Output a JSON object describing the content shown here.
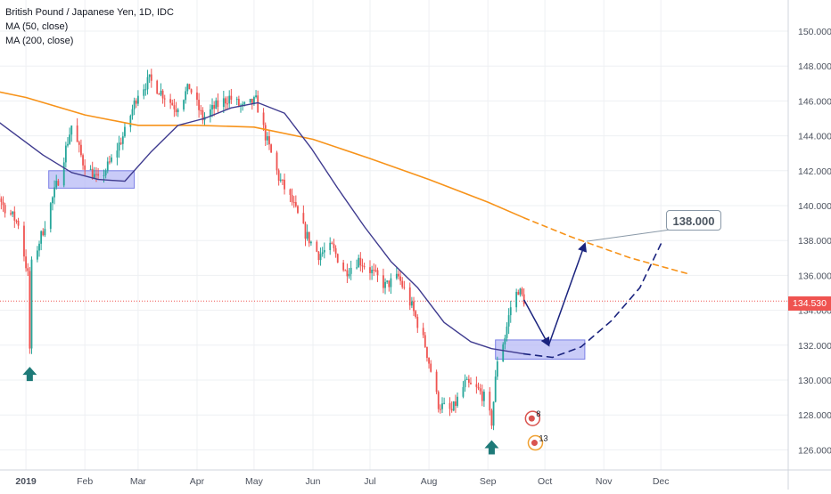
{
  "legend": {
    "title": "British Pound / Japanese Yen, 1D, IDC",
    "ma50": "MA (50, close)",
    "ma200": "MA (200, close)"
  },
  "price_tag": "134.530",
  "target_label": "138.000",
  "badges": {
    "b1": "8",
    "b2": "13"
  },
  "colors": {
    "up": "#26a69a",
    "down": "#ef5350",
    "ma50": "#3f3b8f",
    "ma200": "#f7931a",
    "zone": "#b2b5f5",
    "arrow_marker": "#1e7a78",
    "projection": "#1a237e",
    "grid": "#eef0f3"
  },
  "chart_data": {
    "type": "candlestick",
    "title": "British Pound / Japanese Yen, 1D, IDC",
    "x_tick_labels": [
      "2019",
      "Feb",
      "Mar",
      "Apr",
      "May",
      "Jun",
      "Jul",
      "Aug",
      "Sep",
      "Oct",
      "Nov",
      "Dec"
    ],
    "y_tick_labels": [
      "126.000",
      "128.000",
      "130.000",
      "132.000",
      "134.000",
      "136.000",
      "138.000",
      "140.000",
      "142.000",
      "144.000",
      "146.000",
      "148.000",
      "150.000"
    ],
    "ylim": [
      125.5,
      151
    ],
    "grid": true,
    "last_price": 134.53,
    "price_path": [
      [
        "2018-12-01",
        144.5
      ],
      [
        "2018-12-10",
        142.6
      ],
      [
        "2018-12-20",
        140.0
      ],
      [
        "2018-12-28",
        139.0
      ],
      [
        "2019-01-02",
        136.0
      ],
      [
        "2019-01-03",
        131.8
      ],
      [
        "2019-01-04",
        136.6
      ],
      [
        "2019-01-10",
        138.6
      ],
      [
        "2019-01-18",
        141.5
      ],
      [
        "2019-01-25",
        144.6
      ],
      [
        "2019-01-31",
        142.5
      ],
      [
        "2019-02-08",
        141.4
      ],
      [
        "2019-02-15",
        142.6
      ],
      [
        "2019-02-22",
        144.2
      ],
      [
        "2019-03-01",
        146.5
      ],
      [
        "2019-03-07",
        147.2
      ],
      [
        "2019-03-14",
        146.4
      ],
      [
        "2019-03-21",
        145.6
      ],
      [
        "2019-03-28",
        146.8
      ],
      [
        "2019-04-04",
        145.0
      ],
      [
        "2019-04-11",
        145.7
      ],
      [
        "2019-04-18",
        146.2
      ],
      [
        "2019-04-25",
        145.6
      ],
      [
        "2019-05-02",
        146.0
      ],
      [
        "2019-05-07",
        144.0
      ],
      [
        "2019-05-14",
        141.6
      ],
      [
        "2019-05-21",
        140.2
      ],
      [
        "2019-05-28",
        138.4
      ],
      [
        "2019-06-04",
        137.2
      ],
      [
        "2019-06-11",
        137.6
      ],
      [
        "2019-06-18",
        136.2
      ],
      [
        "2019-06-25",
        136.9
      ],
      [
        "2019-07-02",
        136.2
      ],
      [
        "2019-07-09",
        135.4
      ],
      [
        "2019-07-16",
        135.9
      ],
      [
        "2019-07-23",
        134.2
      ],
      [
        "2019-07-30",
        132.0
      ],
      [
        "2019-08-06",
        128.6
      ],
      [
        "2019-08-13",
        128.2
      ],
      [
        "2019-08-20",
        129.8
      ],
      [
        "2019-08-27",
        129.4
      ],
      [
        "2019-08-30",
        129.0
      ],
      [
        "2019-09-03",
        127.6
      ],
      [
        "2019-09-06",
        131.2
      ],
      [
        "2019-09-10",
        132.5
      ],
      [
        "2019-09-13",
        134.2
      ],
      [
        "2019-09-17",
        135.2
      ],
      [
        "2019-09-20",
        134.6
      ]
    ],
    "ma50": [
      [
        "2018-12-01",
        146.2
      ],
      [
        "2018-12-20",
        144.6
      ],
      [
        "2019-01-10",
        142.9
      ],
      [
        "2019-01-25",
        141.9
      ],
      [
        "2019-02-08",
        141.5
      ],
      [
        "2019-02-22",
        141.4
      ],
      [
        "2019-03-08",
        143.1
      ],
      [
        "2019-03-22",
        144.6
      ],
      [
        "2019-04-05",
        145.0
      ],
      [
        "2019-04-19",
        145.6
      ],
      [
        "2019-05-03",
        145.9
      ],
      [
        "2019-05-17",
        145.3
      ],
      [
        "2019-05-31",
        143.3
      ],
      [
        "2019-06-14",
        141.0
      ],
      [
        "2019-06-28",
        138.8
      ],
      [
        "2019-07-12",
        136.8
      ],
      [
        "2019-07-26",
        135.3
      ],
      [
        "2019-08-09",
        133.3
      ],
      [
        "2019-08-23",
        132.2
      ],
      [
        "2019-09-03",
        131.8
      ],
      [
        "2019-09-20",
        131.5
      ]
    ],
    "ma200": [
      [
        "2018-12-01",
        146.9
      ],
      [
        "2019-01-01",
        146.2
      ],
      [
        "2019-02-01",
        145.2
      ],
      [
        "2019-03-01",
        144.6
      ],
      [
        "2019-04-01",
        144.6
      ],
      [
        "2019-05-01",
        144.5
      ],
      [
        "2019-06-01",
        143.8
      ],
      [
        "2019-07-01",
        142.7
      ],
      [
        "2019-08-01",
        141.5
      ],
      [
        "2019-09-01",
        140.2
      ],
      [
        "2019-09-20",
        139.3
      ]
    ],
    "ma200_projection": [
      [
        "2019-09-20",
        139.3
      ],
      [
        "2019-10-15",
        138.2
      ],
      [
        "2019-11-15",
        137.0
      ],
      [
        "2019-12-15",
        136.1
      ]
    ],
    "projected_curve": [
      [
        "2019-09-20",
        131.5
      ],
      [
        "2019-10-05",
        131.3
      ],
      [
        "2019-10-20",
        131.9
      ],
      [
        "2019-11-05",
        133.4
      ],
      [
        "2019-11-20",
        135.3
      ],
      [
        "2019-12-01",
        137.8
      ]
    ],
    "forecast_path": [
      [
        "2019-09-20",
        134.6
      ],
      [
        "2019-10-03",
        132.0
      ],
      [
        "2019-10-22",
        137.8
      ]
    ],
    "target_price": 138.0,
    "zones": [
      {
        "from": "2019-01-13",
        "to": "2019-02-27",
        "low": 141.0,
        "high": 142.0
      },
      {
        "from": "2019-09-05",
        "to": "2019-10-22",
        "low": 131.2,
        "high": 132.3
      }
    ],
    "up_markers": [
      {
        "date": "2019-01-03",
        "value": 130.3
      },
      {
        "date": "2019-09-03",
        "value": 126.1
      }
    ],
    "event_badges": [
      {
        "date": "2019-09-25",
        "value": 127.8,
        "label": "8"
      },
      {
        "date": "2019-09-26",
        "value": 126.4,
        "label": "13"
      }
    ]
  }
}
